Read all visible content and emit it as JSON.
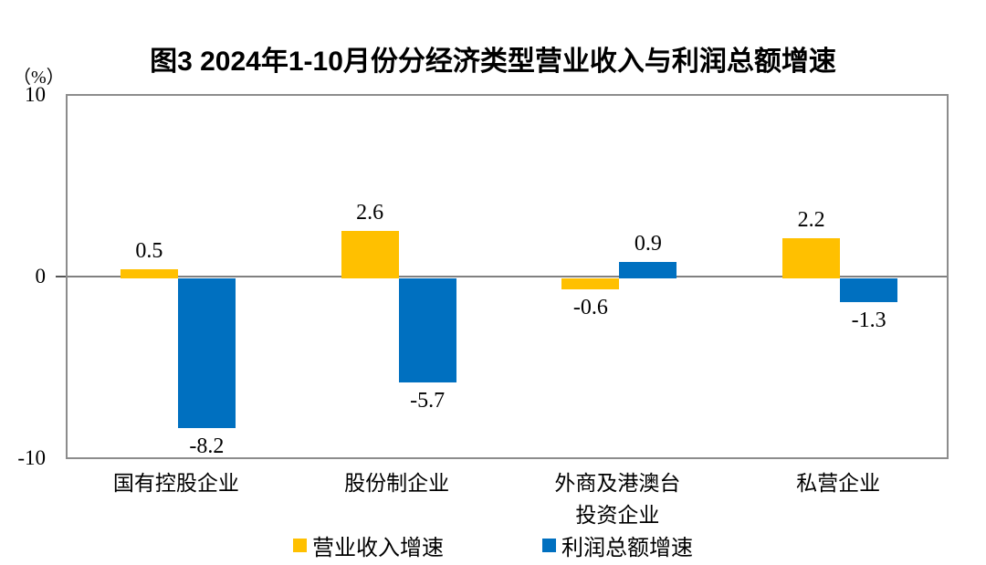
{
  "title": "图3 2024年1-10月份分经济类型营业收入与利润总额增速",
  "axis": {
    "unit_label": "（%）",
    "ticks": [
      "10",
      "0",
      "-10"
    ]
  },
  "chart_data": {
    "type": "bar",
    "categories": [
      "国有控股企业",
      "股份制企业",
      "外商及港澳台投资企业",
      "私营企业"
    ],
    "category_display_lines": [
      [
        "国有控股企业"
      ],
      [
        "股份制企业"
      ],
      [
        "外商及港澳台",
        "投资企业"
      ],
      [
        "私营企业"
      ]
    ],
    "series": [
      {
        "name": "营业收入增速",
        "color": "#FFC000",
        "values": [
          0.5,
          2.6,
          -0.6,
          2.2
        ],
        "labels": [
          "0.5",
          "2.6",
          "-0.6",
          "2.2"
        ]
      },
      {
        "name": "利润总额增速",
        "color": "#0070C0",
        "values": [
          -8.2,
          -5.7,
          0.9,
          -1.3
        ],
        "labels": [
          "-8.2",
          "-5.7",
          "0.9",
          "-1.3"
        ]
      }
    ],
    "title": "图3 2024年1-10月份分经济类型营业收入与利润总额增速",
    "xlabel": "",
    "ylabel": "（%）",
    "ylim": [
      -10,
      10
    ],
    "grid": false,
    "legend_position": "bottom",
    "zero_line": true
  },
  "legend": {
    "items": [
      {
        "label": "营业收入增速",
        "color": "#FFC000"
      },
      {
        "label": "利润总额增速",
        "color": "#0070C0"
      }
    ]
  },
  "style_colors": {
    "bar_yellow": "#FFC000",
    "bar_blue": "#0070C0",
    "axis_gray": "#8c8c8c"
  }
}
